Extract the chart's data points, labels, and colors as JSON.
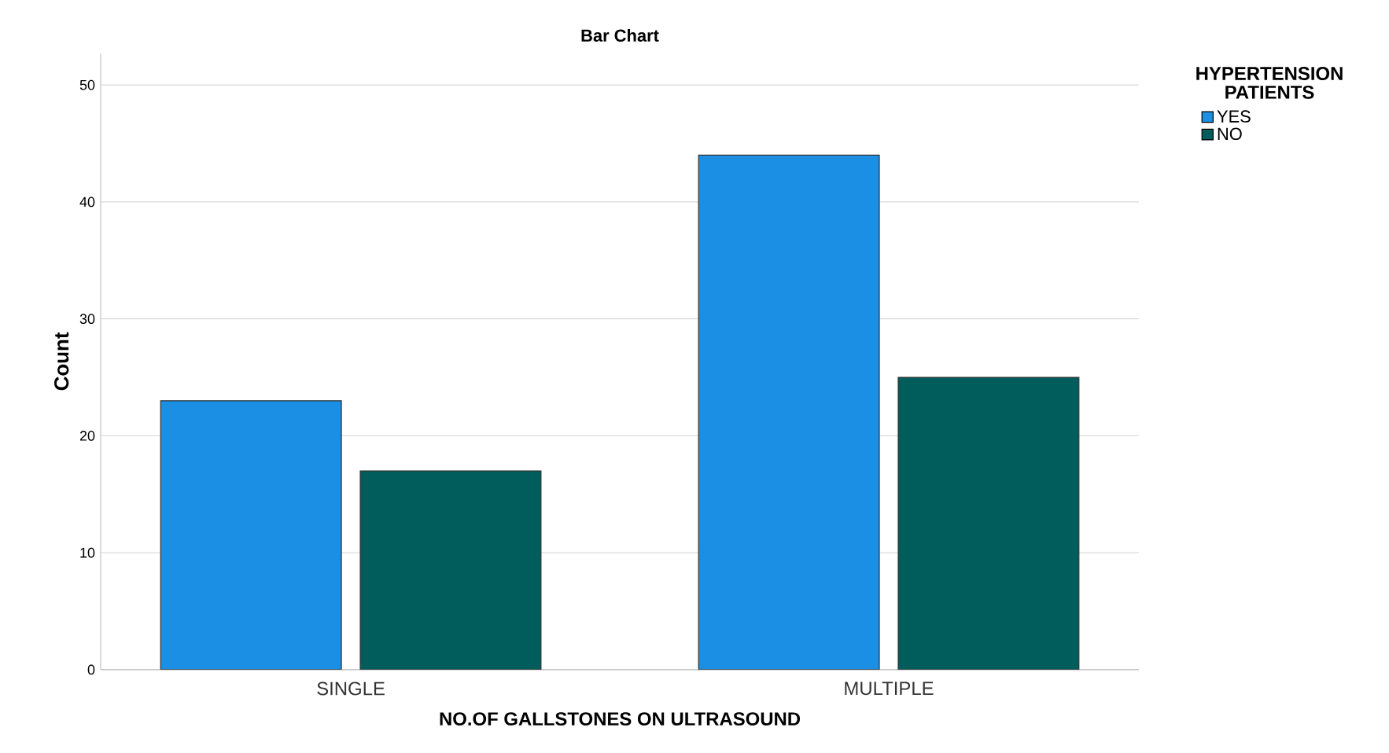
{
  "chart_data": {
    "type": "bar",
    "title": "Bar Chart",
    "xlabel": "NO.OF GALLSTONES ON ULTRASOUND",
    "ylabel": "Count",
    "legend_title": "HYPERTENSION PATIENTS",
    "categories": [
      "SINGLE",
      "MULTIPLE"
    ],
    "series": [
      {
        "name": "YES",
        "color": "#1a8fe3",
        "values": [
          23,
          44
        ]
      },
      {
        "name": "NO",
        "color": "#005d5b",
        "values": [
          17,
          25
        ]
      }
    ],
    "ylim": [
      0,
      52.7
    ],
    "yticks": [
      0,
      10,
      20,
      30,
      40,
      50
    ],
    "grid": "y",
    "legend": "top right"
  }
}
